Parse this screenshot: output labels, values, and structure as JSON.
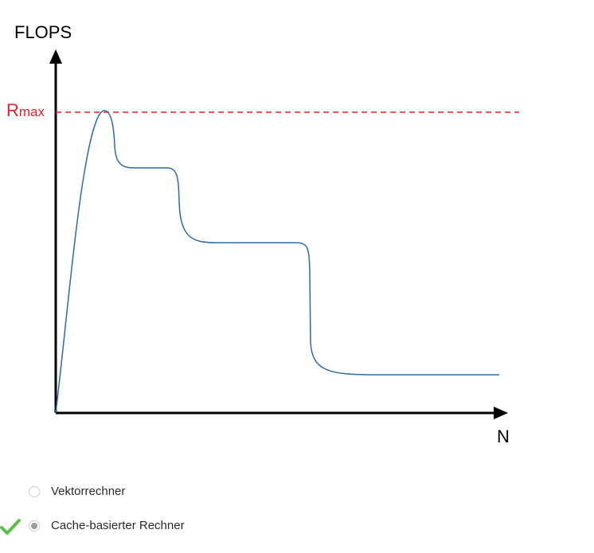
{
  "figure": {
    "y_axis_label": "FLOPS",
    "x_axis_label": "N",
    "rmax_base": "R",
    "rmax_subscript": "max",
    "colors": {
      "axis": "#000000",
      "curve": "#2f6aa3",
      "rmax": "#e8202a"
    }
  },
  "options": [
    {
      "label": "Vektorrechner",
      "selected": false,
      "correct": false
    },
    {
      "label": "Cache-basierter Rechner",
      "selected": true,
      "correct": true
    }
  ],
  "icons": {
    "correct_marker": "check-icon",
    "option_marker": "radio-icon"
  }
}
